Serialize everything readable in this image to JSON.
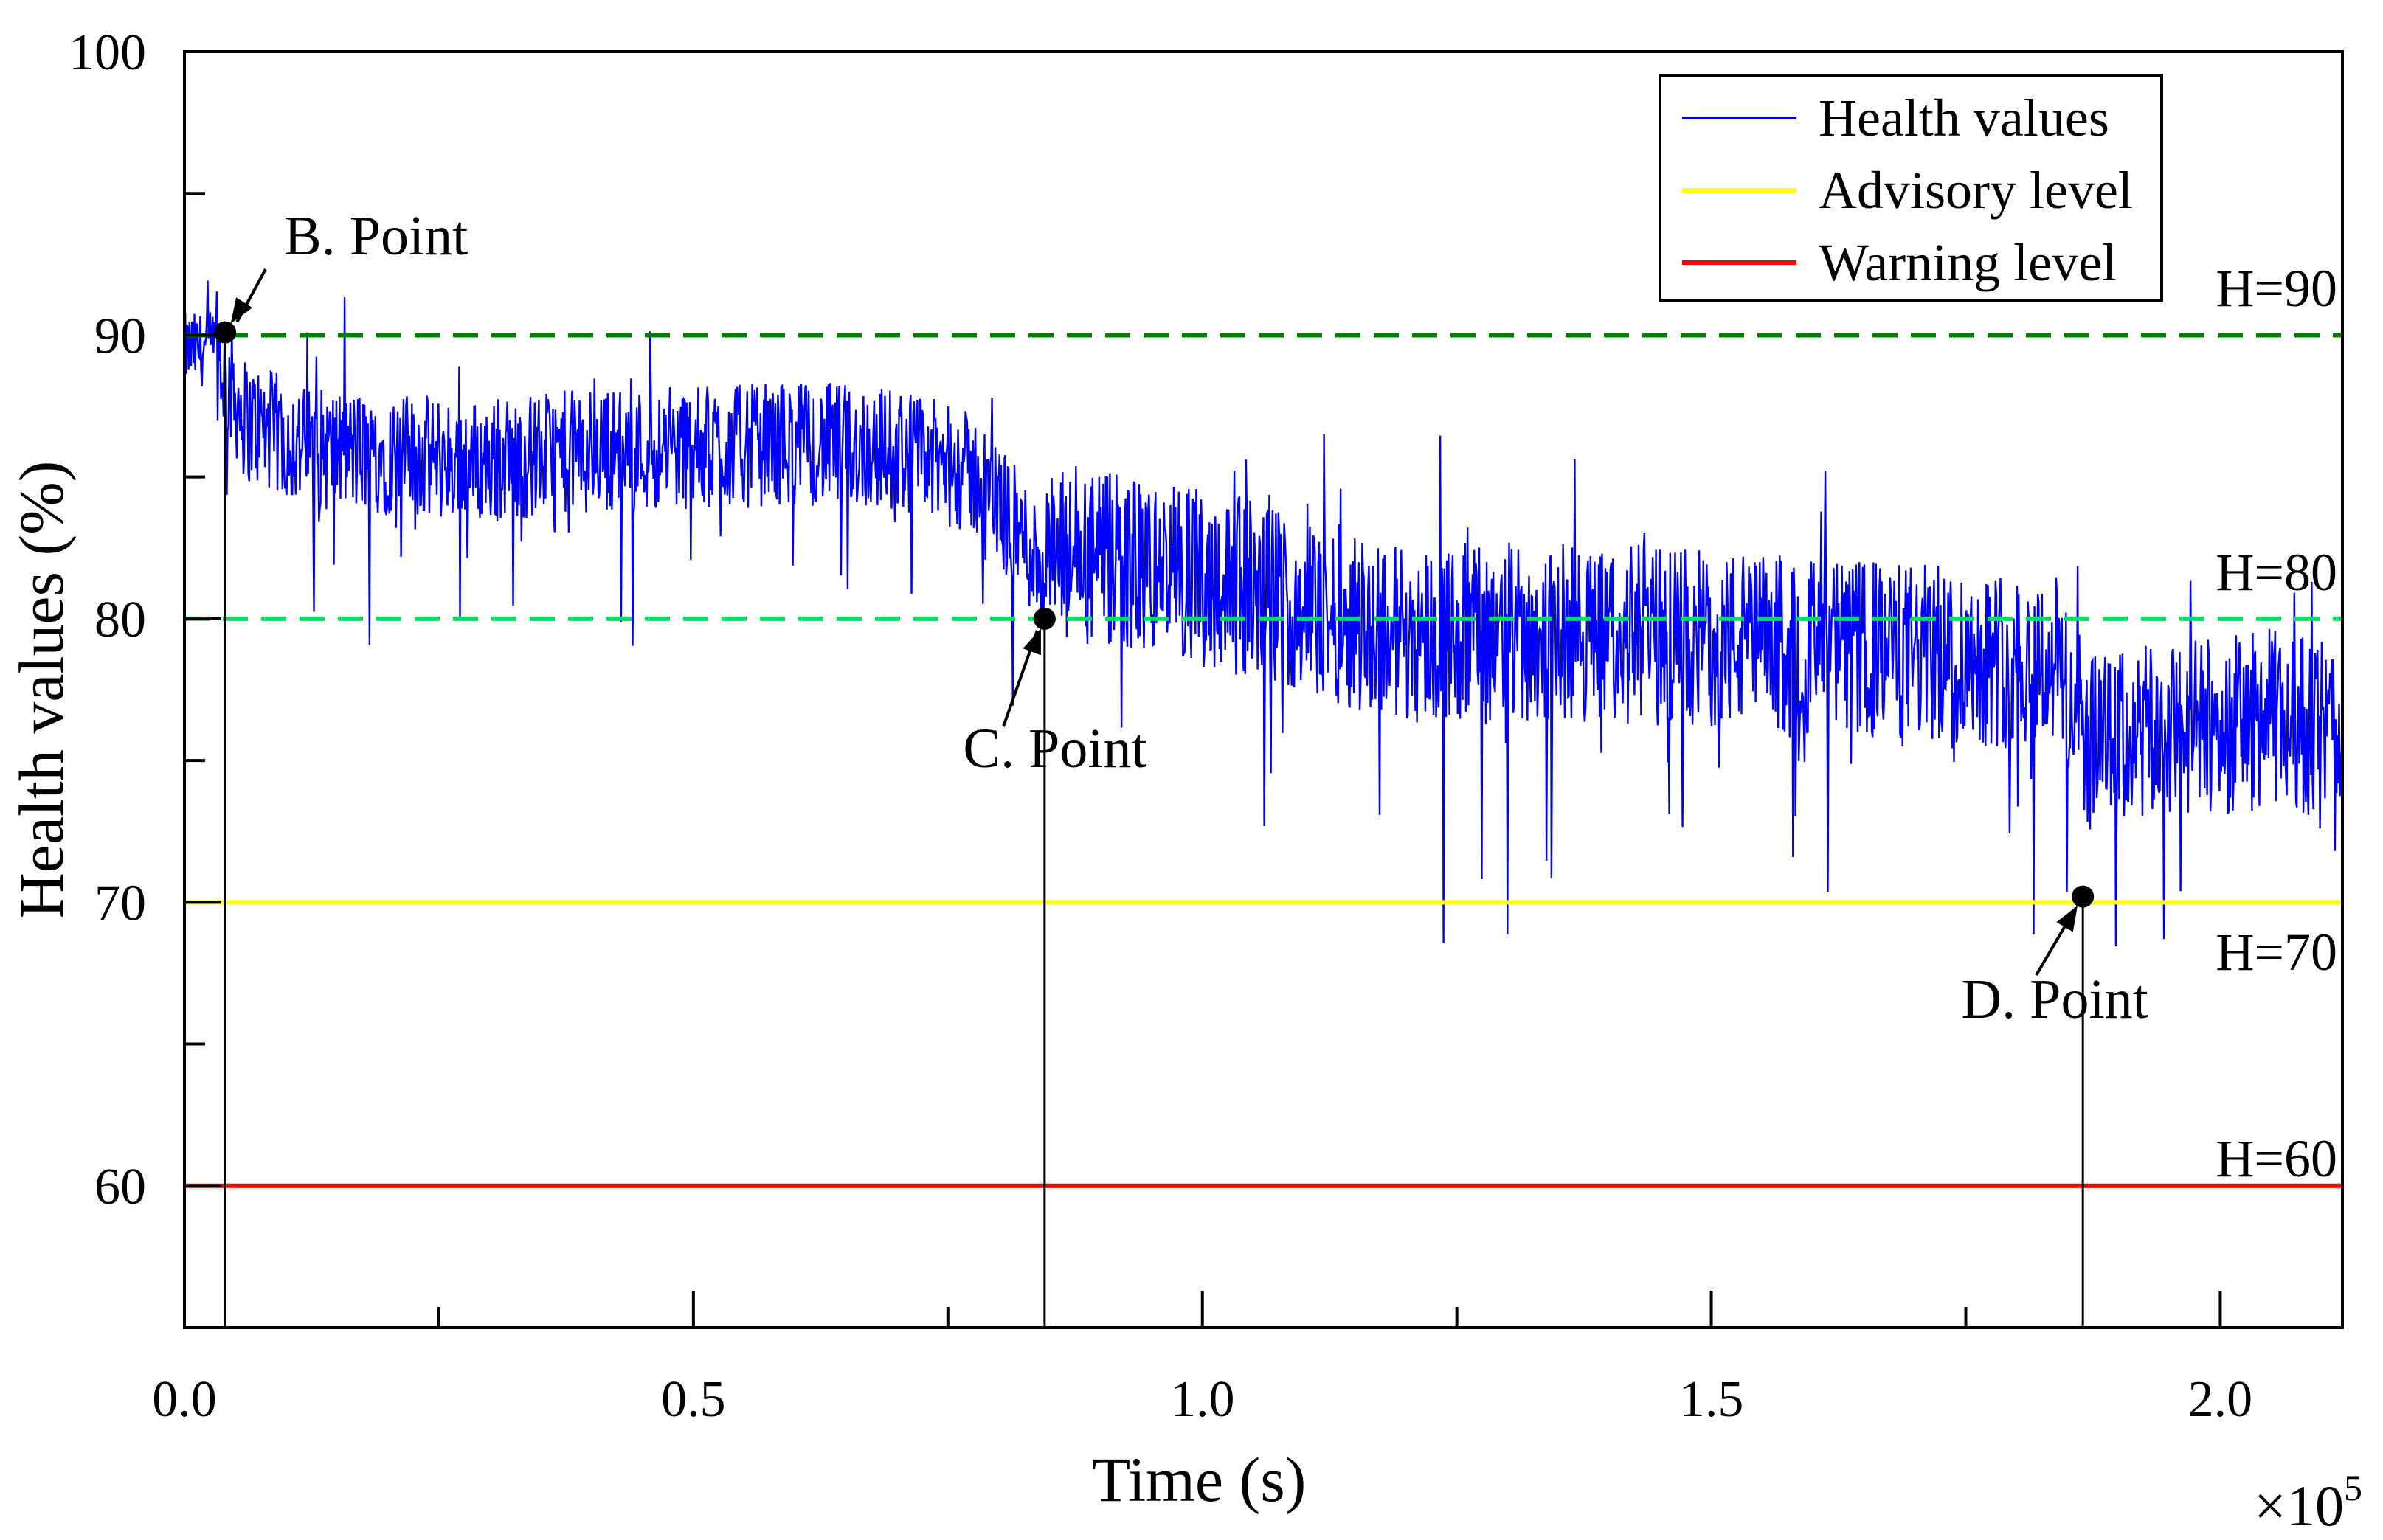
{
  "chart_data": {
    "type": "line",
    "title": "",
    "xlabel": "Time (s)",
    "ylabel": "Health values (%)",
    "x_multiplier_label": "×10",
    "x_multiplier_exp": "5",
    "xlim": [
      0,
      2.12
    ],
    "ylim": [
      55,
      100
    ],
    "x_ticks": [
      {
        "value": 0.0,
        "label": "0.0"
      },
      {
        "value": 0.5,
        "label": "0.5"
      },
      {
        "value": 1.0,
        "label": "1.0"
      },
      {
        "value": 1.5,
        "label": "1.5"
      },
      {
        "value": 2.0,
        "label": "2.0"
      }
    ],
    "x_minor_ticks": [
      0.25,
      0.75,
      1.25,
      1.75
    ],
    "y_ticks": [
      {
        "value": 60,
        "label": "60"
      },
      {
        "value": 70,
        "label": "70"
      },
      {
        "value": 80,
        "label": "80"
      },
      {
        "value": 90,
        "label": "90"
      },
      {
        "value": 100,
        "label": "100"
      }
    ],
    "y_minor_ticks": [
      65,
      75,
      85,
      95
    ],
    "grid": false,
    "legend_position": "top-right",
    "series": [
      {
        "name": "Health values",
        "color": "#0000ff",
        "noise_amplitude": 2.2,
        "trend": [
          [
            0.0,
            89.5
          ],
          [
            0.03,
            89.5
          ],
          [
            0.06,
            87.0
          ],
          [
            0.12,
            86.0
          ],
          [
            0.2,
            85.8
          ],
          [
            0.3,
            85.5
          ],
          [
            0.4,
            86.0
          ],
          [
            0.5,
            86.0
          ],
          [
            0.6,
            86.2
          ],
          [
            0.7,
            86.0
          ],
          [
            0.78,
            85.0
          ],
          [
            0.84,
            82.0
          ],
          [
            0.9,
            82.0
          ],
          [
            1.0,
            81.5
          ],
          [
            1.1,
            80.5
          ],
          [
            1.2,
            79.5
          ],
          [
            1.3,
            79.5
          ],
          [
            1.4,
            79.5
          ],
          [
            1.5,
            79.3
          ],
          [
            1.6,
            79.0
          ],
          [
            1.7,
            78.8
          ],
          [
            1.84,
            78.5
          ],
          [
            1.87,
            75.5
          ],
          [
            1.95,
            76.0
          ],
          [
            2.05,
            76.5
          ],
          [
            2.12,
            76.0
          ]
        ]
      },
      {
        "name": "Advisory level",
        "color": "#ffff00",
        "values": [
          70,
          70
        ]
      },
      {
        "name": "Warning level",
        "color": "#ff0000",
        "values": [
          60,
          60
        ]
      }
    ],
    "reference_lines": [
      {
        "y": 90,
        "label": "H=90",
        "color": "#008000",
        "dashed": true
      },
      {
        "y": 80,
        "label": "H=80",
        "color": "#00e060",
        "dashed": true
      },
      {
        "y": 70,
        "label": "H=70",
        "color": "#ffff00",
        "dashed": false
      },
      {
        "y": 60,
        "label": "H=60",
        "color": "#ff0000",
        "dashed": false
      }
    ],
    "annotations": [
      {
        "label": "B. Point",
        "x": 0.04,
        "y": 90.1
      },
      {
        "label": "C. Point",
        "x": 0.845,
        "y": 80.0
      },
      {
        "label": "D. Point",
        "x": 1.865,
        "y": 70.2
      }
    ]
  }
}
